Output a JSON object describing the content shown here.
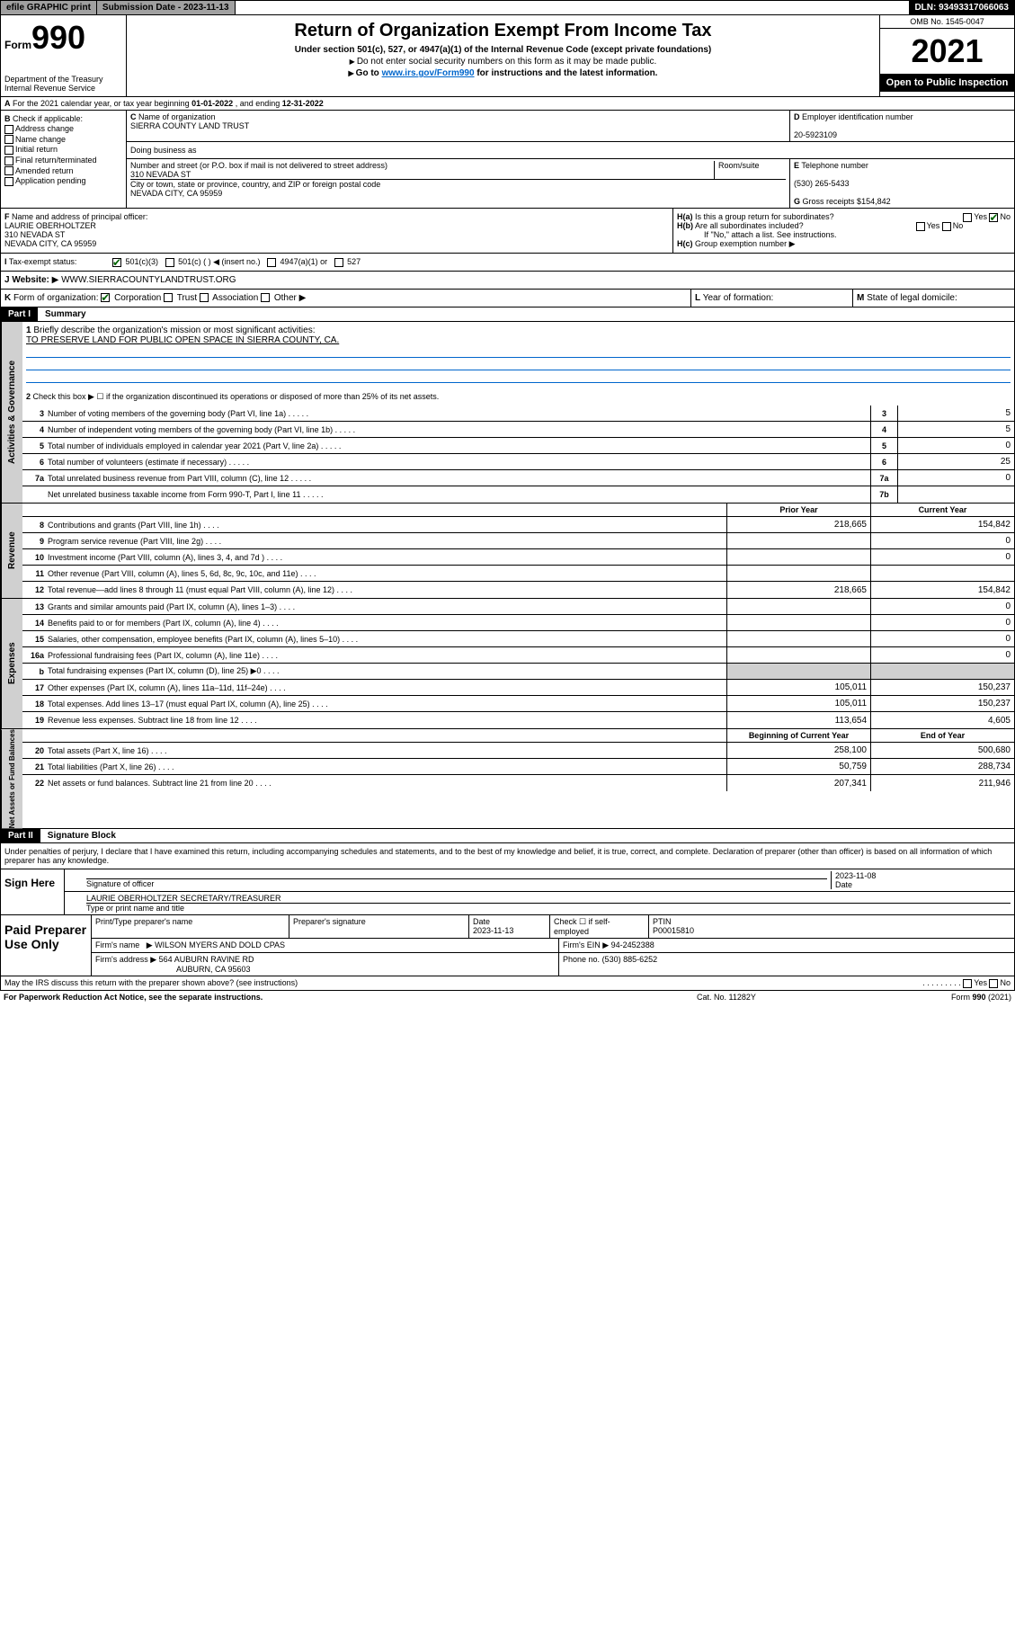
{
  "topbar": {
    "efile": "efile GRAPHIC print",
    "sub_label": "Submission Date -",
    "sub_date": "2023-11-13",
    "dln_label": "DLN:",
    "dln": "93493317066063"
  },
  "header": {
    "form": "990",
    "form_prefix": "Form",
    "dept": "Department of the Treasury Internal Revenue Service",
    "title": "Return of Organization Exempt From Income Tax",
    "sub1": "Under section 501(c), 527, or 4947(a)(1) of the Internal Revenue Code (except private foundations)",
    "sub2": "Do not enter social security numbers on this form as it may be made public.",
    "sub3_pre": "Go to ",
    "sub3_link": "www.irs.gov/Form990",
    "sub3_post": " for instructions and the latest information.",
    "omb": "OMB No. 1545-0047",
    "year": "2021",
    "open": "Open to Public Inspection"
  },
  "A": {
    "text_pre": "For the 2021 calendar year, or tax year beginning ",
    "begin": "01-01-2022",
    "mid": " , and ending ",
    "end": "12-31-2022"
  },
  "B": {
    "label": "Check if applicable:",
    "opts": [
      "Address change",
      "Name change",
      "Initial return",
      "Final return/terminated",
      "Amended return",
      "Application pending"
    ]
  },
  "C": {
    "name_label": "Name of organization",
    "name": "SIERRA COUNTY LAND TRUST",
    "dba_label": "Doing business as",
    "street_label": "Number and street (or P.O. box if mail is not delivered to street address)",
    "room_label": "Room/suite",
    "street": "310 NEVADA ST",
    "city_label": "City or town, state or province, country, and ZIP or foreign postal code",
    "city": "NEVADA CITY, CA  95959"
  },
  "D": {
    "label": "Employer identification number",
    "val": "20-5923109"
  },
  "E": {
    "label": "Telephone number",
    "val": "(530) 265-5433"
  },
  "G": {
    "label": "Gross receipts $",
    "val": "154,842"
  },
  "F": {
    "label": "Name and address of principal officer:",
    "name": "LAURIE OBERHOLTZER",
    "addr1": "310 NEVADA ST",
    "addr2": "NEVADA CITY, CA  95959"
  },
  "H": {
    "a": "Is this a group return for subordinates?",
    "a_ans": "No",
    "b": "Are all subordinates included?",
    "b_note": "If \"No,\" attach a list. See instructions.",
    "c": "Group exemption number"
  },
  "I": {
    "label": "Tax-exempt status:",
    "opts": [
      "501(c)(3)",
      "501(c) ( ) ◀ (insert no.)",
      "4947(a)(1) or",
      "527"
    ]
  },
  "J": {
    "label": "Website:",
    "val": "WWW.SIERRACOUNTYLANDTRUST.ORG"
  },
  "K": {
    "label": "Form of organization:",
    "opts": [
      "Corporation",
      "Trust",
      "Association",
      "Other"
    ],
    "L": "Year of formation:",
    "M": "State of legal domicile:"
  },
  "partI": {
    "label": "Part I",
    "title": "Summary"
  },
  "summary": {
    "l1": "Briefly describe the organization's mission or most significant activities:",
    "mission": "TO PRESERVE LAND FOR PUBLIC OPEN SPACE IN SIERRA COUNTY, CA.",
    "l2": "Check this box ▶ ☐ if the organization discontinued its operations or disposed of more than 25% of its net assets.",
    "rows_gov": [
      {
        "n": "3",
        "d": "Number of voting members of the governing body (Part VI, line 1a)",
        "b": "3",
        "v": "5"
      },
      {
        "n": "4",
        "d": "Number of independent voting members of the governing body (Part VI, line 1b)",
        "b": "4",
        "v": "5"
      },
      {
        "n": "5",
        "d": "Total number of individuals employed in calendar year 2021 (Part V, line 2a)",
        "b": "5",
        "v": "0"
      },
      {
        "n": "6",
        "d": "Total number of volunteers (estimate if necessary)",
        "b": "6",
        "v": "25"
      },
      {
        "n": "7a",
        "d": "Total unrelated business revenue from Part VIII, column (C), line 12",
        "b": "7a",
        "v": "0"
      },
      {
        "n": "",
        "d": "Net unrelated business taxable income from Form 990-T, Part I, line 11",
        "b": "7b",
        "v": ""
      }
    ],
    "hdr_prior": "Prior Year",
    "hdr_curr": "Current Year",
    "rows_rev": [
      {
        "n": "8",
        "d": "Contributions and grants (Part VIII, line 1h)",
        "p": "218,665",
        "c": "154,842"
      },
      {
        "n": "9",
        "d": "Program service revenue (Part VIII, line 2g)",
        "p": "",
        "c": "0"
      },
      {
        "n": "10",
        "d": "Investment income (Part VIII, column (A), lines 3, 4, and 7d )",
        "p": "",
        "c": "0"
      },
      {
        "n": "11",
        "d": "Other revenue (Part VIII, column (A), lines 5, 6d, 8c, 9c, 10c, and 11e)",
        "p": "",
        "c": ""
      },
      {
        "n": "12",
        "d": "Total revenue—add lines 8 through 11 (must equal Part VIII, column (A), line 12)",
        "p": "218,665",
        "c": "154,842"
      }
    ],
    "rows_exp": [
      {
        "n": "13",
        "d": "Grants and similar amounts paid (Part IX, column (A), lines 1–3)",
        "p": "",
        "c": "0"
      },
      {
        "n": "14",
        "d": "Benefits paid to or for members (Part IX, column (A), line 4)",
        "p": "",
        "c": "0"
      },
      {
        "n": "15",
        "d": "Salaries, other compensation, employee benefits (Part IX, column (A), lines 5–10)",
        "p": "",
        "c": "0"
      },
      {
        "n": "16a",
        "d": "Professional fundraising fees (Part IX, column (A), line 11e)",
        "p": "",
        "c": "0"
      },
      {
        "n": "b",
        "d": "Total fundraising expenses (Part IX, column (D), line 25) ▶0",
        "p": "grey",
        "c": "grey"
      },
      {
        "n": "17",
        "d": "Other expenses (Part IX, column (A), lines 11a–11d, 11f–24e)",
        "p": "105,011",
        "c": "150,237"
      },
      {
        "n": "18",
        "d": "Total expenses. Add lines 13–17 (must equal Part IX, column (A), line 25)",
        "p": "105,011",
        "c": "150,237"
      },
      {
        "n": "19",
        "d": "Revenue less expenses. Subtract line 18 from line 12",
        "p": "113,654",
        "c": "4,605"
      }
    ],
    "hdr_beg": "Beginning of Current Year",
    "hdr_end": "End of Year",
    "rows_net": [
      {
        "n": "20",
        "d": "Total assets (Part X, line 16)",
        "p": "258,100",
        "c": "500,680"
      },
      {
        "n": "21",
        "d": "Total liabilities (Part X, line 26)",
        "p": "50,759",
        "c": "288,734"
      },
      {
        "n": "22",
        "d": "Net assets or fund balances. Subtract line 21 from line 20",
        "p": "207,341",
        "c": "211,946"
      }
    ]
  },
  "partII": {
    "label": "Part II",
    "title": "Signature Block"
  },
  "penalty": "Under penalties of perjury, I declare that I have examined this return, including accompanying schedules and statements, and to the best of my knowledge and belief, it is true, correct, and complete. Declaration of preparer (other than officer) is based on all information of which preparer has any knowledge.",
  "sign": {
    "label": "Sign Here",
    "sig_label": "Signature of officer",
    "date_label": "Date",
    "date": "2023-11-08",
    "name": "LAURIE OBERHOLTZER  SECRETARY/TREASURER",
    "name_label": "Type or print name and title"
  },
  "paid": {
    "label": "Paid Preparer Use Only",
    "c1": "Print/Type preparer's name",
    "c2": "Preparer's signature",
    "c3": "Date",
    "c3v": "2023-11-13",
    "c4": "Check ☐ if self-employed",
    "c5": "PTIN",
    "c5v": "P00015810",
    "firm_label": "Firm's name",
    "firm": "WILSON MYERS AND DOLD CPAS",
    "ein_label": "Firm's EIN",
    "ein": "94-2452388",
    "addr_label": "Firm's address",
    "addr1": "564 AUBURN RAVINE RD",
    "addr2": "AUBURN, CA  95603",
    "phone_label": "Phone no.",
    "phone": "(530) 885-6252"
  },
  "footer": {
    "q": "May the IRS discuss this return with the preparer shown above? (see instructions)",
    "pra": "For Paperwork Reduction Act Notice, see the separate instructions.",
    "cat": "Cat. No. 11282Y",
    "form": "Form 990 (2021)"
  },
  "vlabels": {
    "gov": "Activities & Governance",
    "rev": "Revenue",
    "exp": "Expenses",
    "net": "Net Assets or Fund Balances"
  }
}
